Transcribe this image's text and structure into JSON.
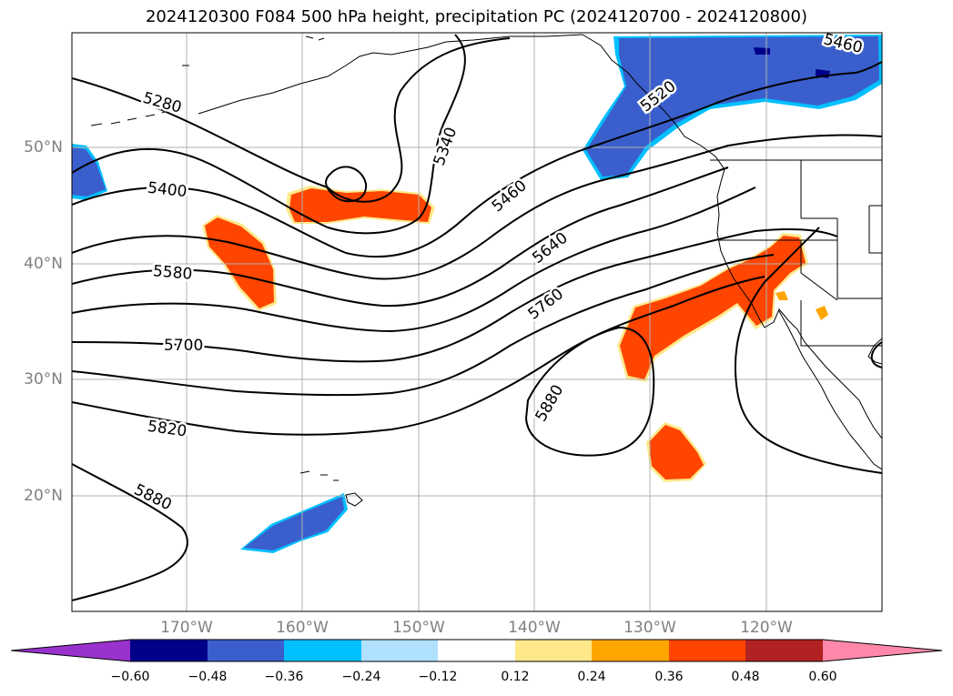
{
  "title": "2024120300 F084 500 hPa height, precipitation PC (2024120700 - 2024120800)",
  "lat_labels": [
    "50°N",
    "40°N",
    "30°N",
    "20°N"
  ],
  "lon_labels": [
    "170°W",
    "160°W",
    "150°W",
    "140°W",
    "130°W",
    "120°W"
  ],
  "contour_labels": [
    "5280",
    "5340",
    "5400",
    "5460",
    "5520",
    "5460",
    "5580",
    "5640",
    "5700",
    "5760",
    "5820",
    "5880",
    "5880"
  ],
  "colorbar": {
    "ticks": [
      "−0.60",
      "−0.48",
      "−0.36",
      "−0.24",
      "−0.12",
      "0.12",
      "0.24",
      "0.36",
      "0.48",
      "0.60"
    ],
    "colors": [
      "#9932cc",
      "#00008b",
      "#3a5fcd",
      "#00bfff",
      "#b0e2ff",
      "#ffffff",
      "#ffe88a",
      "#ffa500",
      "#ff4500",
      "#b22222",
      "#ff88aa"
    ]
  },
  "colors": {
    "positive_pc": "#ff4500",
    "negative_pc": "#3a5fcd",
    "contour": "#000000",
    "grid": "#b0b0b0",
    "axis_label": "#808080"
  }
}
